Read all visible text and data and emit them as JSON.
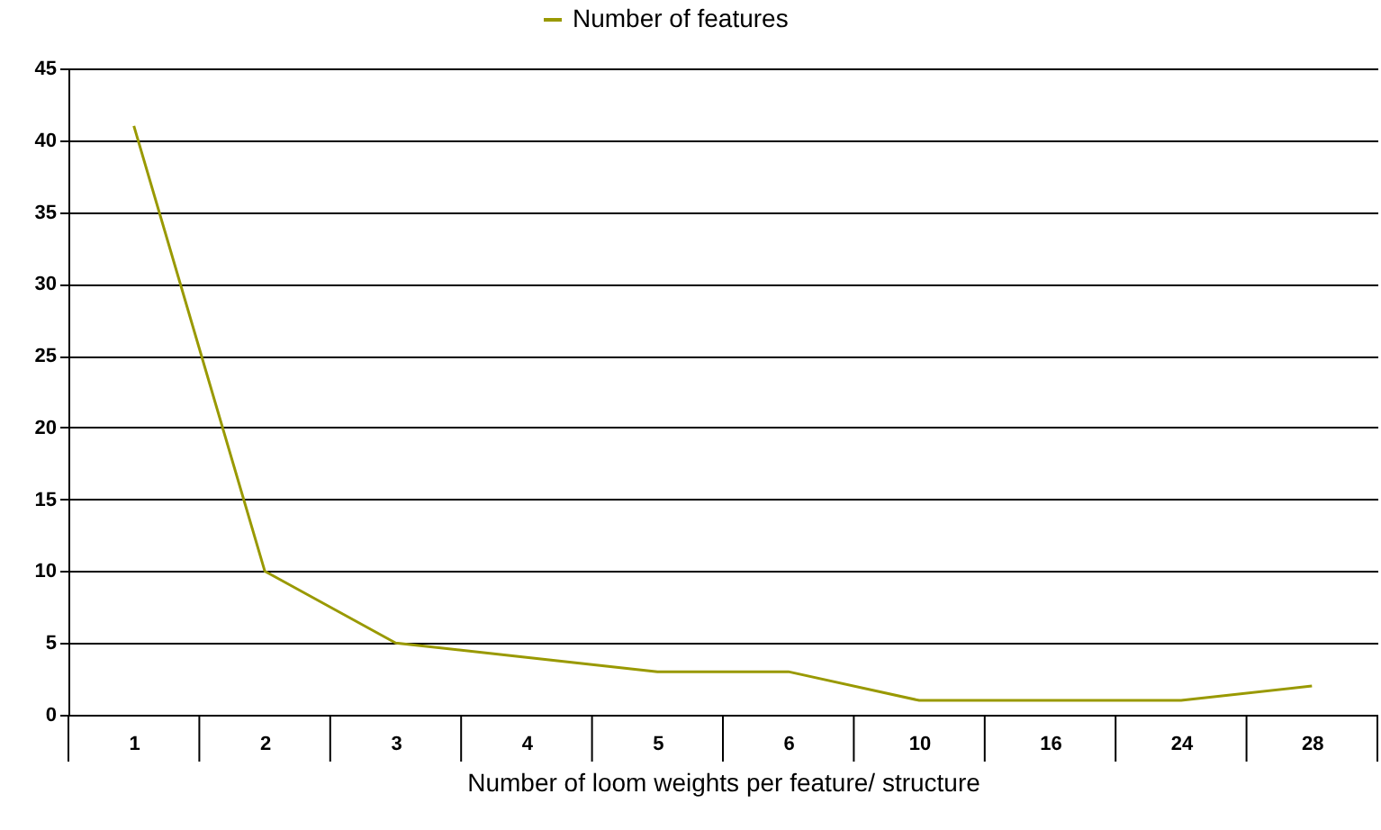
{
  "chart_data": {
    "type": "line",
    "xlabel": "Number of loom weights per feature/ structure",
    "categories": [
      "1",
      "2",
      "3",
      "4",
      "5",
      "6",
      "10",
      "16",
      "24",
      "28"
    ],
    "series": [
      {
        "name": "Number of features",
        "color": "#999900",
        "values": [
          41,
          10,
          5,
          4,
          3,
          3,
          1,
          1,
          1,
          2
        ]
      }
    ],
    "ylim": [
      0,
      45
    ],
    "yticks": [
      0,
      5,
      10,
      15,
      20,
      25,
      30,
      35,
      40,
      45
    ],
    "grid": "y",
    "legend": "top",
    "marker": "none"
  }
}
